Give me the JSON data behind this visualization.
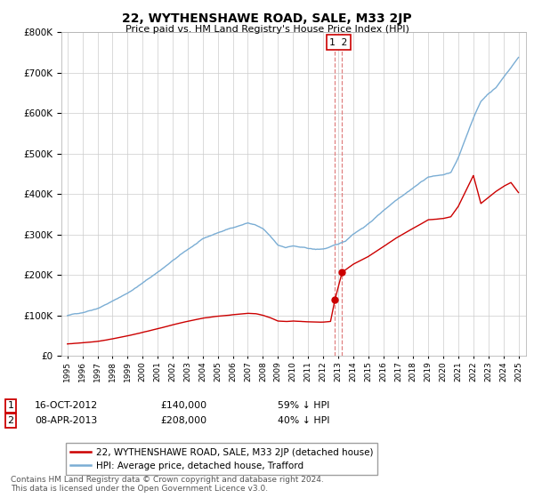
{
  "title": "22, WYTHENSHAWE ROAD, SALE, M33 2JP",
  "subtitle": "Price paid vs. HM Land Registry's House Price Index (HPI)",
  "hpi_label": "HPI: Average price, detached house, Trafford",
  "property_label": "22, WYTHENSHAWE ROAD, SALE, M33 2JP (detached house)",
  "hpi_color": "#7aadd4",
  "property_color": "#cc0000",
  "vline_color": "#e08080",
  "sale1_date": 2012.79,
  "sale1_price": 140000,
  "sale2_date": 2013.27,
  "sale2_price": 208000,
  "ylim_min": 0,
  "ylim_max": 800000,
  "hpi_key_years": [
    1995,
    1996,
    1997,
    1998,
    1999,
    2000,
    2001,
    2002,
    2003,
    2004,
    2005,
    2006,
    2007,
    2007.5,
    2008,
    2008.5,
    2009,
    2009.5,
    2010,
    2010.5,
    2011,
    2011.5,
    2012,
    2012.5,
    2013,
    2013.5,
    2014,
    2015,
    2016,
    2017,
    2018,
    2019,
    2020,
    2020.5,
    2021,
    2021.5,
    2022,
    2022.5,
    2023,
    2023.5,
    2024,
    2024.5,
    2025
  ],
  "hpi_key_vals": [
    100000,
    108000,
    120000,
    138000,
    158000,
    183000,
    210000,
    238000,
    265000,
    290000,
    305000,
    318000,
    330000,
    325000,
    315000,
    295000,
    273000,
    268000,
    272000,
    268000,
    265000,
    262000,
    263000,
    268000,
    274000,
    282000,
    300000,
    325000,
    358000,
    390000,
    418000,
    445000,
    450000,
    455000,
    490000,
    540000,
    590000,
    630000,
    650000,
    665000,
    690000,
    715000,
    740000
  ],
  "prop_key_years_before": [
    1995,
    1996,
    1997,
    1998,
    1999,
    2000,
    2001,
    2002,
    2003,
    2004,
    2005,
    2006,
    2007,
    2007.5,
    2008,
    2008.5,
    2009,
    2009.5,
    2010,
    2010.5,
    2011,
    2011.5,
    2012,
    2012.5,
    2012.79
  ],
  "prop_key_vals_before": [
    30000,
    33000,
    37000,
    43000,
    50000,
    59000,
    68000,
    77000,
    86000,
    94000,
    99000,
    103000,
    107000,
    106000,
    102000,
    96000,
    88000,
    87000,
    88000,
    87000,
    86000,
    85000,
    85000,
    87000,
    140000
  ],
  "prop_key_years_after": [
    2013.27,
    2013.5,
    2014,
    2015,
    2016,
    2017,
    2018,
    2019,
    2020,
    2020.5,
    2021,
    2021.5,
    2022,
    2022.5,
    2023,
    2023.5,
    2024,
    2024.5,
    2025
  ],
  "prop_key_vals_after": [
    208000,
    214000,
    228000,
    247000,
    271000,
    296000,
    317000,
    338000,
    341000,
    345000,
    371000,
    409000,
    447000,
    378000,
    393000,
    408000,
    420000,
    430000,
    405000
  ],
  "footnote": "Contains HM Land Registry data © Crown copyright and database right 2024.\nThis data is licensed under the Open Government Licence v3.0."
}
